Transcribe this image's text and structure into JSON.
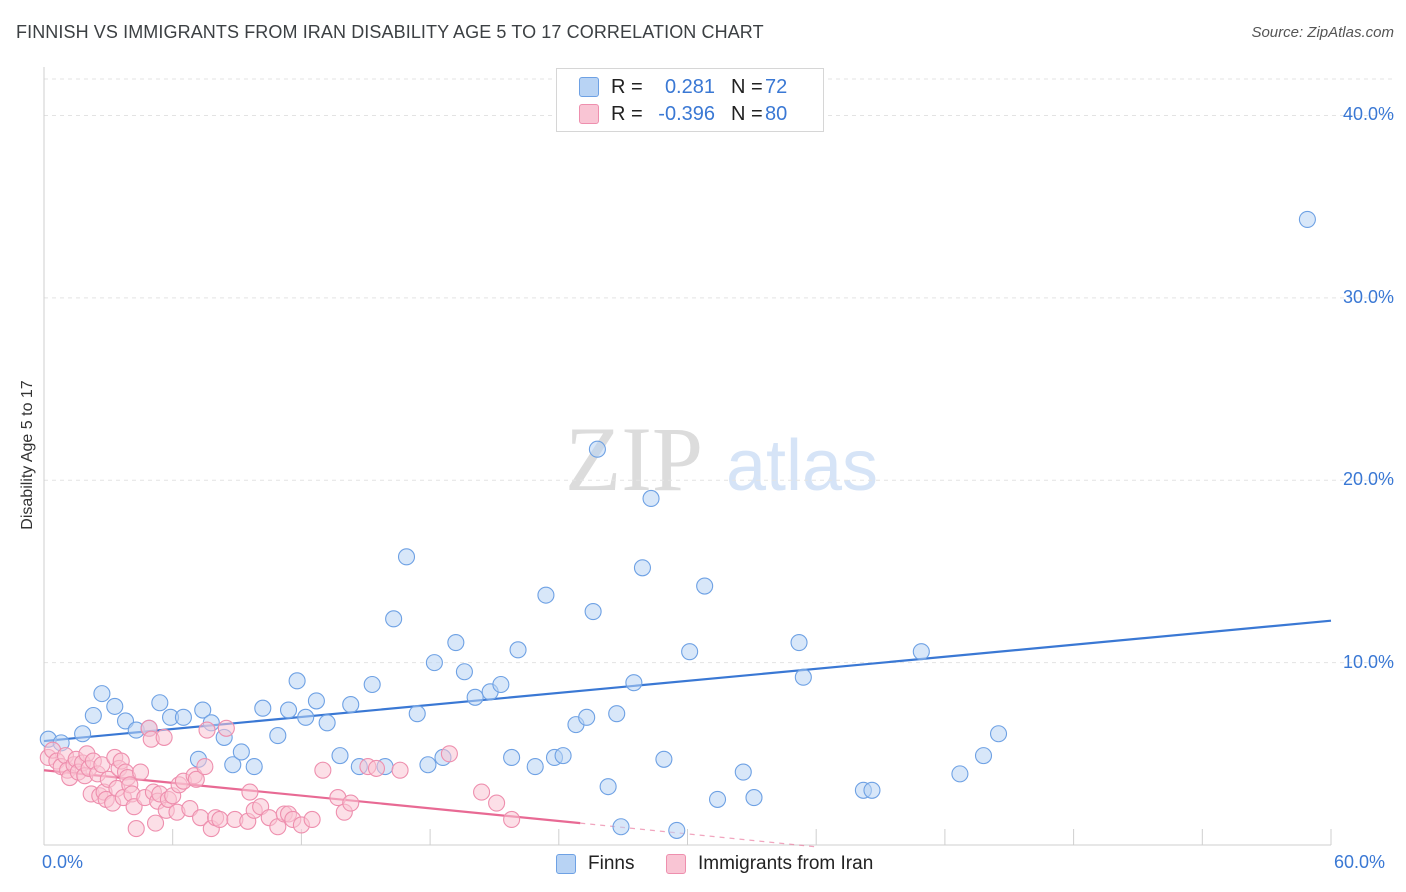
{
  "title": "FINNISH VS IMMIGRANTS FROM IRAN DISABILITY AGE 5 TO 17 CORRELATION CHART",
  "source": "Source: ZipAtlas.com",
  "watermark": {
    "zip": "ZIP",
    "atlas": "atlas"
  },
  "legend": {
    "r_label": "R =",
    "n_label": "N =",
    "rows": [
      {
        "name": "Finns",
        "r": "0.281",
        "n": "72",
        "fill": "#b8d3f4",
        "stroke": "#6ea1e4"
      },
      {
        "name": "Immigrants from Iran",
        "r": "-0.396",
        "n": "80",
        "fill": "#f9c5d4",
        "stroke": "#ee8fae"
      }
    ]
  },
  "colors": {
    "blue": "#3a78d4",
    "pink": "#e86a94",
    "blue_fill": "#b8d3f4",
    "pink_fill": "#f9c5d4"
  },
  "chart_data": {
    "type": "scatter",
    "title": "FINNISH VS IMMIGRANTS FROM IRAN DISABILITY AGE 5 TO 17 CORRELATION CHART",
    "xlabel": "",
    "ylabel": "Disability Age 5 to 17",
    "xlim": [
      0,
      60
    ],
    "ylim": [
      0,
      42
    ],
    "x_tick_labels": [
      "0.0%",
      "60.0%"
    ],
    "y_tick_labels": [
      "10.0%",
      "20.0%",
      "30.0%",
      "40.0%"
    ],
    "y_ticks": [
      10,
      20,
      30,
      40
    ],
    "grid": true,
    "legend_position": "top-center",
    "series": [
      {
        "name": "Finns",
        "points": [
          [
            0.2,
            5.8
          ],
          [
            0.8,
            5.6
          ],
          [
            1.8,
            6.1
          ],
          [
            2.3,
            7.1
          ],
          [
            2.7,
            8.3
          ],
          [
            3.3,
            7.6
          ],
          [
            3.8,
            6.8
          ],
          [
            4.3,
            6.3
          ],
          [
            4.9,
            6.4
          ],
          [
            5.4,
            7.8
          ],
          [
            5.9,
            7.0
          ],
          [
            6.5,
            7.0
          ],
          [
            7.2,
            4.7
          ],
          [
            7.4,
            7.4
          ],
          [
            7.8,
            6.7
          ],
          [
            8.4,
            5.9
          ],
          [
            8.8,
            4.4
          ],
          [
            9.2,
            5.1
          ],
          [
            9.8,
            4.3
          ],
          [
            10.2,
            7.5
          ],
          [
            10.9,
            6.0
          ],
          [
            11.4,
            7.4
          ],
          [
            11.8,
            9.0
          ],
          [
            12.2,
            7.0
          ],
          [
            12.7,
            7.9
          ],
          [
            13.2,
            6.7
          ],
          [
            13.8,
            4.9
          ],
          [
            14.3,
            7.7
          ],
          [
            14.7,
            4.3
          ],
          [
            15.3,
            8.8
          ],
          [
            15.9,
            4.3
          ],
          [
            16.3,
            12.4
          ],
          [
            16.9,
            15.8
          ],
          [
            17.4,
            7.2
          ],
          [
            17.9,
            4.4
          ],
          [
            18.2,
            10.0
          ],
          [
            18.6,
            4.8
          ],
          [
            19.2,
            11.1
          ],
          [
            19.6,
            9.5
          ],
          [
            20.1,
            8.1
          ],
          [
            20.8,
            8.4
          ],
          [
            21.3,
            8.8
          ],
          [
            21.8,
            4.8
          ],
          [
            22.1,
            10.7
          ],
          [
            22.9,
            4.3
          ],
          [
            23.4,
            13.7
          ],
          [
            23.8,
            4.8
          ],
          [
            24.2,
            4.9
          ],
          [
            24.8,
            6.6
          ],
          [
            25.3,
            7.0
          ],
          [
            25.6,
            12.8
          ],
          [
            25.8,
            21.7
          ],
          [
            26.3,
            3.2
          ],
          [
            26.7,
            7.2
          ],
          [
            26.9,
            1.0
          ],
          [
            27.5,
            8.9
          ],
          [
            27.9,
            15.2
          ],
          [
            28.3,
            19.0
          ],
          [
            28.9,
            4.7
          ],
          [
            29.5,
            0.8
          ],
          [
            30.1,
            10.6
          ],
          [
            30.8,
            14.2
          ],
          [
            31.4,
            2.5
          ],
          [
            32.6,
            4.0
          ],
          [
            33.1,
            2.6
          ],
          [
            35.2,
            11.1
          ],
          [
            35.4,
            9.2
          ],
          [
            38.2,
            3.0
          ],
          [
            38.6,
            3.0
          ],
          [
            40.9,
            10.6
          ],
          [
            42.7,
            3.9
          ],
          [
            43.8,
            4.9
          ],
          [
            44.5,
            6.1
          ],
          [
            58.9,
            34.3
          ]
        ],
        "trend": {
          "x": [
            0,
            60
          ],
          "y": [
            5.7,
            12.3
          ]
        }
      },
      {
        "name": "Immigrants from Iran",
        "points": [
          [
            0.2,
            4.8
          ],
          [
            0.4,
            5.2
          ],
          [
            0.6,
            4.6
          ],
          [
            0.8,
            4.3
          ],
          [
            1.0,
            4.9
          ],
          [
            1.1,
            4.1
          ],
          [
            1.2,
            3.7
          ],
          [
            1.4,
            4.4
          ],
          [
            1.5,
            4.7
          ],
          [
            1.6,
            4.0
          ],
          [
            1.8,
            4.5
          ],
          [
            1.9,
            3.8
          ],
          [
            2.0,
            5.0
          ],
          [
            2.1,
            4.2
          ],
          [
            2.2,
            2.8
          ],
          [
            2.3,
            4.6
          ],
          [
            2.5,
            3.9
          ],
          [
            2.6,
            2.7
          ],
          [
            2.7,
            4.4
          ],
          [
            2.8,
            2.9
          ],
          [
            2.9,
            2.5
          ],
          [
            3.0,
            3.6
          ],
          [
            3.2,
            2.3
          ],
          [
            3.3,
            4.8
          ],
          [
            3.4,
            3.1
          ],
          [
            3.5,
            4.2
          ],
          [
            3.6,
            4.6
          ],
          [
            3.7,
            2.6
          ],
          [
            3.8,
            4.0
          ],
          [
            3.9,
            3.7
          ],
          [
            4.0,
            3.3
          ],
          [
            4.1,
            2.8
          ],
          [
            4.2,
            2.1
          ],
          [
            4.3,
            0.9
          ],
          [
            4.5,
            4.0
          ],
          [
            4.7,
            2.6
          ],
          [
            4.9,
            6.4
          ],
          [
            5.0,
            5.8
          ],
          [
            5.1,
            2.9
          ],
          [
            5.2,
            1.2
          ],
          [
            5.3,
            2.4
          ],
          [
            5.4,
            2.8
          ],
          [
            5.6,
            5.9
          ],
          [
            5.7,
            1.9
          ],
          [
            5.8,
            2.5
          ],
          [
            6.0,
            2.7
          ],
          [
            6.2,
            1.8
          ],
          [
            6.3,
            3.3
          ],
          [
            6.5,
            3.5
          ],
          [
            6.8,
            2.0
          ],
          [
            7.0,
            3.8
          ],
          [
            7.1,
            3.6
          ],
          [
            7.3,
            1.5
          ],
          [
            7.5,
            4.3
          ],
          [
            7.6,
            6.3
          ],
          [
            7.8,
            0.9
          ],
          [
            8.0,
            1.5
          ],
          [
            8.2,
            1.4
          ],
          [
            8.5,
            6.4
          ],
          [
            8.9,
            1.4
          ],
          [
            9.5,
            1.3
          ],
          [
            9.6,
            2.9
          ],
          [
            9.8,
            1.9
          ],
          [
            10.1,
            2.1
          ],
          [
            10.5,
            1.5
          ],
          [
            10.9,
            1.0
          ],
          [
            11.2,
            1.7
          ],
          [
            11.4,
            1.7
          ],
          [
            11.6,
            1.4
          ],
          [
            12.0,
            1.1
          ],
          [
            12.5,
            1.4
          ],
          [
            13.0,
            4.1
          ],
          [
            13.7,
            2.6
          ],
          [
            14.0,
            1.8
          ],
          [
            14.3,
            2.3
          ],
          [
            15.1,
            4.3
          ],
          [
            15.5,
            4.2
          ],
          [
            16.6,
            4.1
          ],
          [
            18.9,
            5.0
          ],
          [
            20.4,
            2.9
          ],
          [
            21.1,
            2.3
          ],
          [
            21.8,
            1.4
          ]
        ],
        "trend": {
          "x": [
            0,
            25
          ],
          "y": [
            4.1,
            1.2
          ]
        },
        "trend_dashed": {
          "x": [
            25,
            36
          ],
          "y": [
            1.2,
            -0.1
          ]
        }
      }
    ]
  }
}
